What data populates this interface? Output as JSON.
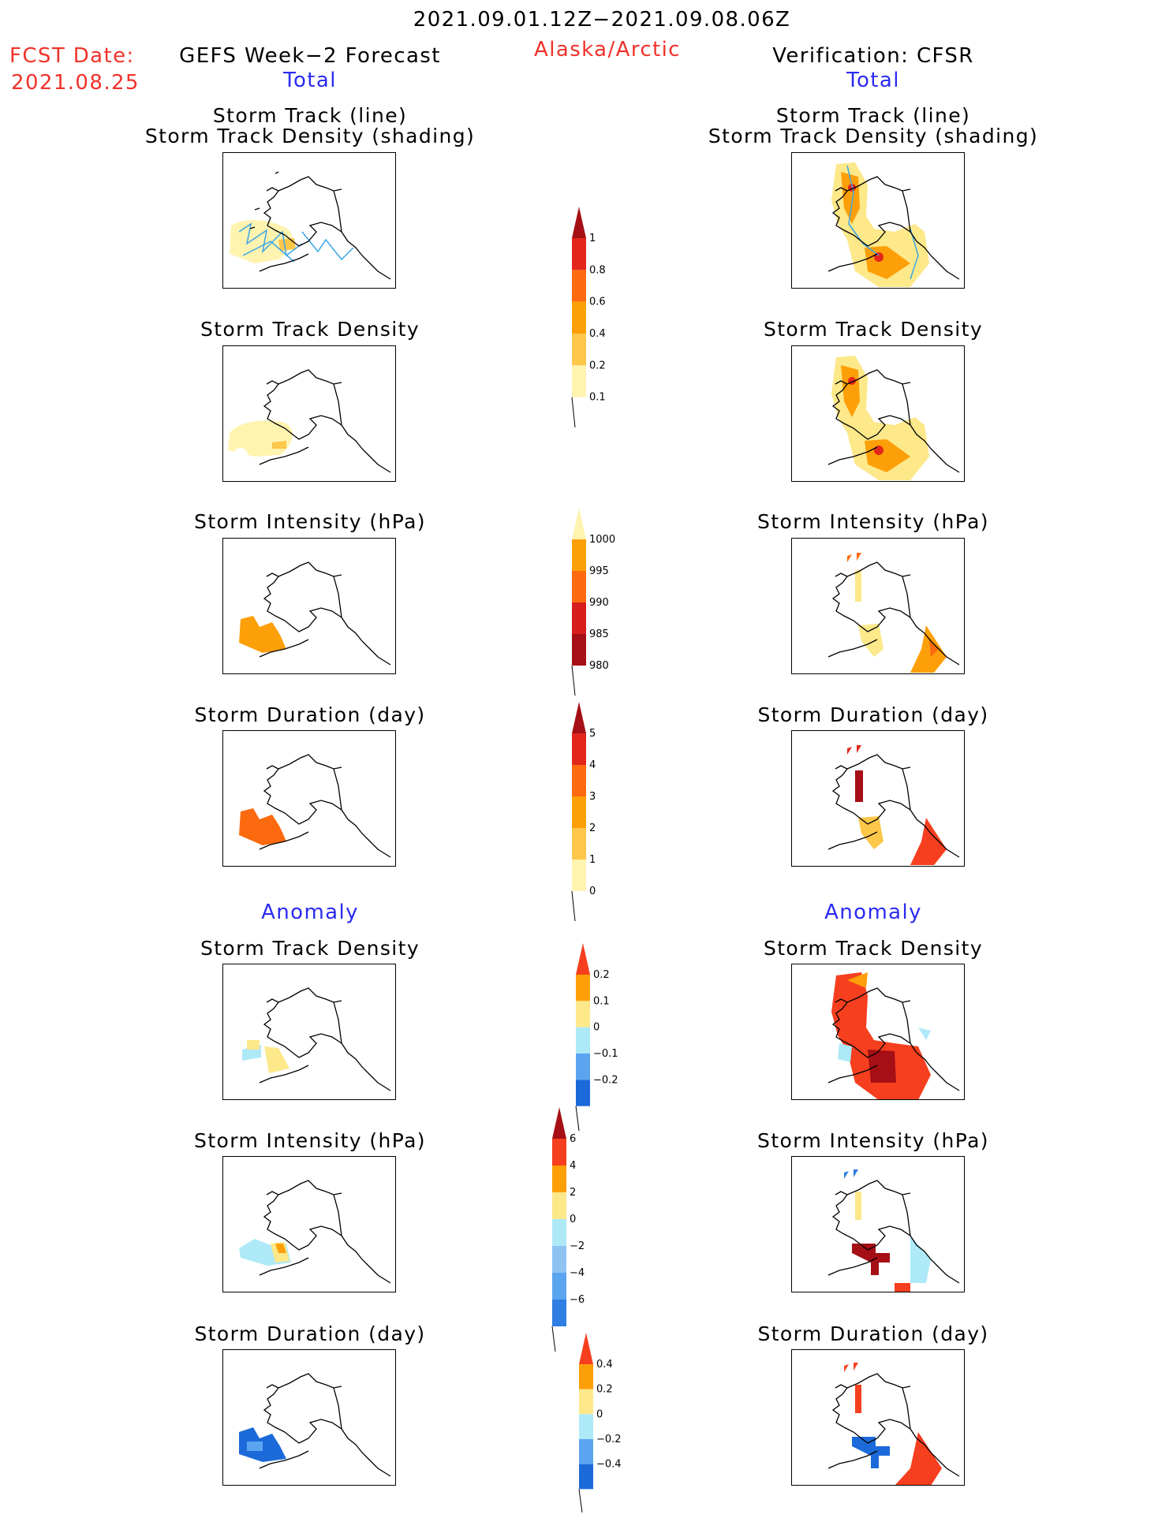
{
  "header": {
    "date_range": "2021.09.01.12Z−2021.09.08.06Z",
    "region": "Alaska/Arctic",
    "fcst_label": "FCST Date:",
    "fcst_date": "2021.08.25",
    "left_model": "GEFS Week−2 Forecast",
    "right_model": "Verification: CFSR",
    "total_label": "Total",
    "anomaly_label": "Anomaly"
  },
  "rows": [
    {
      "title_line1": "Storm Track (line)",
      "title_line2": "Storm Track Density (shading)"
    },
    {
      "title_line1": "Storm Track Density"
    },
    {
      "title_line1": "Storm Intensity (hPa)"
    },
    {
      "title_line1": "Storm Duration (day)"
    },
    {
      "title_line1": "Storm Track Density"
    },
    {
      "title_line1": "Storm Intensity (hPa)"
    },
    {
      "title_line1": "Storm Duration (day)"
    }
  ],
  "colorbars": [
    {
      "labels": [
        "1",
        "0.8",
        "0.6",
        "0.4",
        "0.2",
        "0.1"
      ],
      "colors": [
        "#a50f15",
        "#e3261c",
        "#fb6a0e",
        "#fd9f08",
        "#fdc74a",
        "#fff3b0"
      ]
    },
    {
      "labels": [
        "1000",
        "995",
        "990",
        "985",
        "980"
      ],
      "colors": [
        "#fff3b0",
        "#fd9f08",
        "#fb6a0e",
        "#d71d1d",
        "#a50f15"
      ]
    },
    {
      "labels": [
        "5",
        "4",
        "3",
        "2",
        "1",
        "0"
      ],
      "colors": [
        "#a50f15",
        "#e3261c",
        "#fb6a0e",
        "#fd9f08",
        "#fdc74a",
        "#fff3b0"
      ]
    },
    {
      "labels": [
        "0.2",
        "0.1",
        "0",
        "−0.1",
        "−0.2"
      ],
      "colors": [
        "#f63f1e",
        "#fd9f08",
        "#fde88a",
        "#aee9f8",
        "#5ba5f0",
        "#1c6ad9"
      ]
    },
    {
      "labels": [
        "6",
        "4",
        "2",
        "0",
        "−2",
        "−4",
        "−6"
      ],
      "colors": [
        "#a50f15",
        "#f63f1e",
        "#fd9f08",
        "#fde88a",
        "#aee9f8",
        "#8ec4f2",
        "#5ba5f0",
        "#2e7ee3"
      ]
    },
    {
      "labels": [
        "0.4",
        "0.2",
        "0",
        "−0.2",
        "−0.4"
      ],
      "colors": [
        "#f63f1e",
        "#fd9f08",
        "#fde88a",
        "#aee9f8",
        "#5ba5f0",
        "#1c6ad9"
      ]
    }
  ],
  "colors": {
    "accent_red": "#f0322a",
    "accent_blue": "#2b2bf2",
    "track_line": "#3aa6e8"
  }
}
